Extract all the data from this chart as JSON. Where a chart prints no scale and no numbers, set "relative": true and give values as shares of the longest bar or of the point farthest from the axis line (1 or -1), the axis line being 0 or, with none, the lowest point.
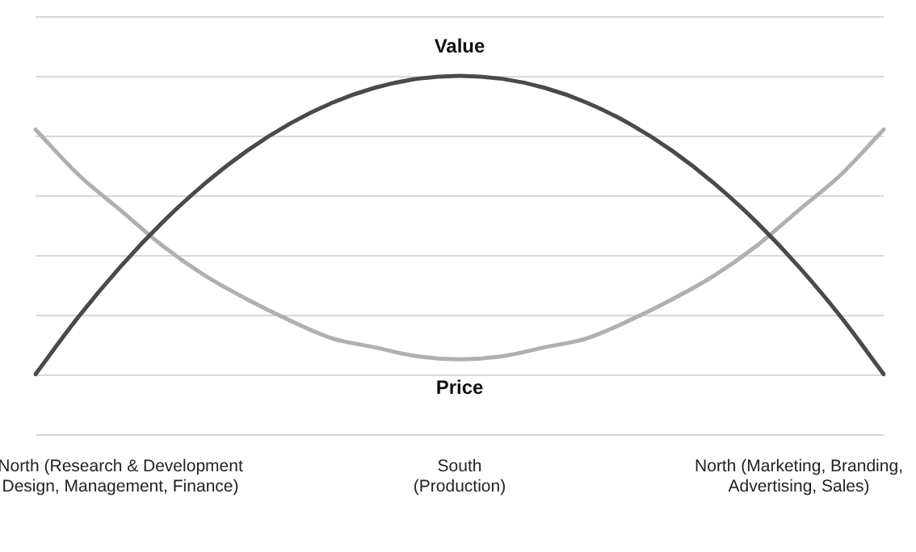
{
  "chart_data": {
    "type": "line",
    "relative": true,
    "grid": "y",
    "marker": "none",
    "line_style": "solid",
    "legend": false,
    "categories": [
      null,
      null,
      "North (Research & Development\nDesign, Management, Finance)",
      null,
      null,
      null,
      null,
      null,
      null,
      null,
      "South\n(Production)",
      null,
      null,
      null,
      null,
      null,
      null,
      null,
      "North (Marketing, Branding,\nAdvertising, Sales)",
      null,
      null
    ],
    "series": [
      {
        "name": "Value",
        "color": "#4a4a4a",
        "values": [
          0,
          0.19,
          0.36,
          0.51,
          0.64,
          0.75,
          0.84,
          0.91,
          0.96,
          0.99,
          1,
          0.99,
          0.96,
          0.91,
          0.84,
          0.75,
          0.64,
          0.51,
          0.36,
          0.19,
          0
        ]
      },
      {
        "name": "Price",
        "color": "#b0b0b0",
        "values": [
          0.82,
          0.67,
          0.55,
          0.43,
          0.33,
          0.25,
          0.18,
          0.12,
          0.09,
          0.06,
          0.05,
          0.06,
          0.09,
          0.12,
          0.18,
          0.25,
          0.33,
          0.43,
          0.55,
          0.67,
          0.82
        ]
      }
    ]
  }
}
